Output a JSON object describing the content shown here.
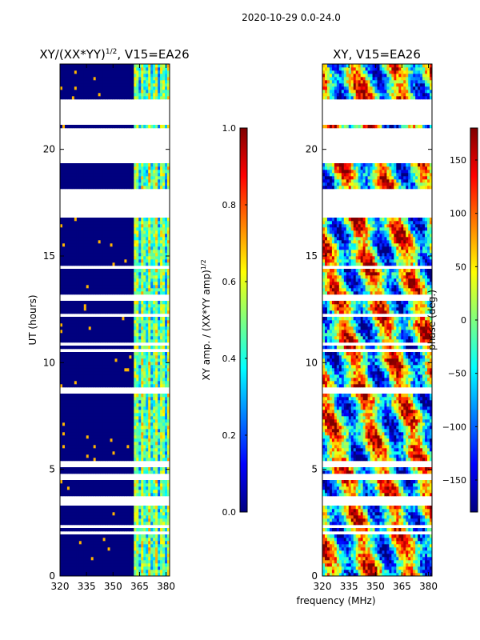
{
  "figure": {
    "suptitle": "2020-10-29 0.0-24.0",
    "xlabel_shared": "frequency (MHz)"
  },
  "colors": {
    "jet": [
      "#00007f",
      "#0000ff",
      "#007fff",
      "#00ffff",
      "#7fff7f",
      "#ffff00",
      "#ff7f00",
      "#ff0000",
      "#7f0000"
    ],
    "background": "#ffffff"
  },
  "chart_data": [
    {
      "id": "amp",
      "type": "heatmap",
      "title": "XY/(XX*YY)",
      "title_sup": "1/2",
      "title_suffix": ", V15=EA26",
      "ylabel": "UT (hours)",
      "xlabel": "",
      "xlim": [
        320,
        382
      ],
      "ylim": [
        0,
        24
      ],
      "xticks": [
        "320",
        "335",
        "350",
        "365",
        "380"
      ],
      "xtick_values": [
        320,
        335,
        350,
        365,
        380
      ],
      "yticks": [
        "0",
        "5",
        "10",
        "15",
        "20"
      ],
      "ytick_values": [
        0,
        5,
        10,
        15,
        20
      ],
      "value_range": [
        0.0,
        1.0
      ],
      "flagged_time_ranges_hours": [
        [
          17.0,
          18.1
        ],
        [
          19.3,
          21.0
        ],
        [
          21.15,
          22.4
        ],
        [
          4.5,
          4.75
        ],
        [
          12.95,
          13.15
        ],
        [
          8.6,
          8.8
        ]
      ],
      "colorbar": {
        "label": "XY amp. / (XX*YY amp)",
        "label_sup": "1/2",
        "ticks": [
          "0.0",
          "0.2",
          "0.4",
          "0.6",
          "0.8",
          "1.0"
        ],
        "tick_values": [
          0.0,
          0.2,
          0.4,
          0.6,
          0.8,
          1.0
        ],
        "range": [
          0.0,
          1.0
        ]
      }
    },
    {
      "id": "phase",
      "type": "heatmap",
      "title": "XY, V15=EA26",
      "ylabel": "",
      "xlabel": "frequency (MHz)",
      "xlim": [
        320,
        382
      ],
      "ylim": [
        0,
        24
      ],
      "xticks": [
        "320",
        "335",
        "350",
        "365",
        "380"
      ],
      "xtick_values": [
        320,
        335,
        350,
        365,
        380
      ],
      "yticks": [
        "0",
        "5",
        "10",
        "15",
        "20"
      ],
      "ytick_values": [
        0,
        5,
        10,
        15,
        20
      ],
      "value_range": [
        -180,
        180
      ],
      "flagged_time_ranges_hours": [
        [
          17.0,
          18.1
        ],
        [
          19.3,
          21.0
        ],
        [
          21.15,
          22.4
        ],
        [
          4.5,
          4.75
        ],
        [
          12.95,
          13.15
        ],
        [
          8.6,
          8.8
        ]
      ],
      "colorbar": {
        "label": "phase (deg.)",
        "ticks": [
          "−150",
          "−100",
          "−50",
          "0",
          "50",
          "100",
          "150"
        ],
        "tick_values": [
          -150,
          -100,
          -50,
          0,
          50,
          100,
          150
        ],
        "range": [
          -180,
          180
        ]
      }
    }
  ]
}
